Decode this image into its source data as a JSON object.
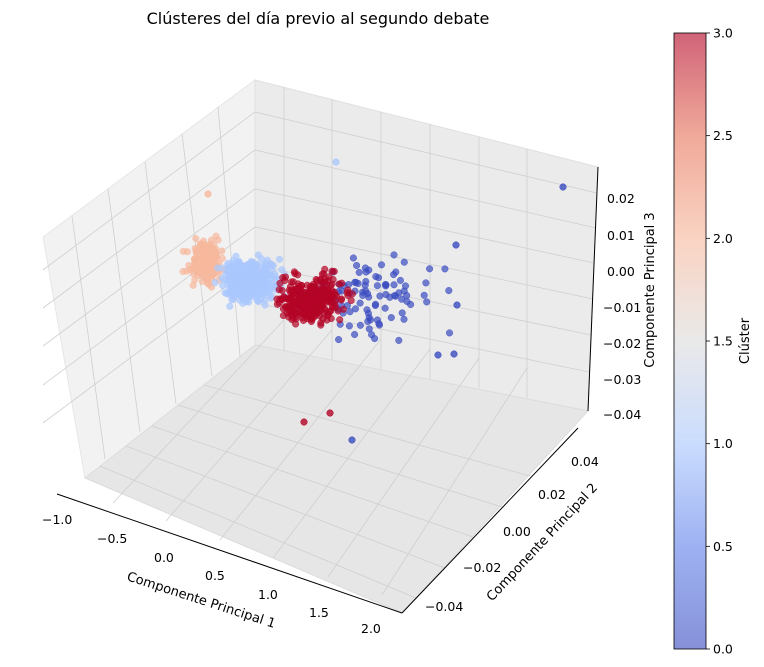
{
  "chart_data": {
    "type": "scatter",
    "projection": "3d",
    "title": "Clústeres del día previo al segundo debate",
    "xlabel": "Componente Principal 1",
    "ylabel": "Componente Principal 2",
    "zlabel": "Componente Principal 3",
    "xlim": [
      -1.1,
      2.3
    ],
    "ylim": [
      -0.05,
      0.05
    ],
    "zlim": [
      -0.04,
      0.026
    ],
    "xticks": [
      -1.0,
      -0.5,
      0.0,
      0.5,
      1.0,
      1.5,
      2.0
    ],
    "xtick_labels": [
      "−1.0",
      "−0.5",
      "0.0",
      "0.5",
      "1.0",
      "1.5",
      "2.0"
    ],
    "yticks": [
      -0.04,
      -0.02,
      0.0,
      0.02,
      0.04
    ],
    "ytick_labels": [
      "−0.04",
      "−0.02",
      "0.00",
      "0.02",
      "0.04"
    ],
    "zticks": [
      -0.04,
      -0.03,
      -0.02,
      -0.01,
      0.0,
      0.01,
      0.02
    ],
    "ztick_labels": [
      "−0.04",
      "−0.03",
      "−0.02",
      "−0.01",
      "0.00",
      "0.01",
      "0.02"
    ],
    "grid": true,
    "colormap": "coolwarm",
    "colorbar": {
      "label": "Clúster",
      "range": [
        0.0,
        3.0
      ],
      "ticks": [
        0.0,
        0.5,
        1.0,
        1.5,
        2.0,
        2.5,
        3.0
      ],
      "tick_labels": [
        "0.0",
        "0.5",
        "1.0",
        "1.5",
        "2.0",
        "2.5",
        "3.0"
      ]
    },
    "clusters": [
      {
        "cluster": 0,
        "color": "#3b4cc0",
        "x_range": [
          0.4,
          2.1
        ],
        "y_range": [
          -0.02,
          0.04
        ],
        "z_range": [
          -0.04,
          0.025
        ],
        "approx_points": 90
      },
      {
        "cluster": 1,
        "color": "#aac7fd",
        "x_range": [
          -0.7,
          0.6
        ],
        "y_range": [
          -0.03,
          0.03
        ],
        "z_range": [
          -0.02,
          0.02
        ],
        "approx_points": 330
      },
      {
        "cluster": 2,
        "color": "#f7b89c",
        "x_range": [
          -1.1,
          -0.4
        ],
        "y_range": [
          -0.03,
          0.03
        ],
        "z_range": [
          -0.02,
          0.02
        ],
        "approx_points": 150
      },
      {
        "cluster": 3,
        "color": "#b40426",
        "x_range": [
          0.0,
          1.0
        ],
        "y_range": [
          -0.03,
          0.03
        ],
        "z_range": [
          -0.04,
          0.015
        ],
        "approx_points": 320
      }
    ]
  }
}
